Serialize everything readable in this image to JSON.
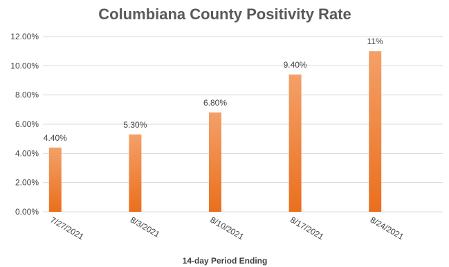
{
  "chart_data": {
    "type": "bar",
    "title": "Columbiana County Positivity Rate",
    "xlabel": "14-day Period Ending",
    "ylabel": "",
    "categories": [
      "7/27/2021",
      "8/3/2021",
      "8/10/2021",
      "8/17/2021",
      "8/24/2021"
    ],
    "values": [
      4.4,
      5.3,
      6.8,
      9.4,
      11.0
    ],
    "data_labels": [
      "4.40%",
      "5.30%",
      "6.80%",
      "9.40%",
      "11%"
    ],
    "y_ticks": [
      "0.00%",
      "2.00%",
      "4.00%",
      "6.00%",
      "8.00%",
      "10.00%",
      "12.00%"
    ],
    "ylim": [
      0,
      12
    ],
    "grid": true,
    "legend": "none",
    "colors": {
      "bar_top": "#f4a069",
      "bar_bottom": "#ea6f1d",
      "grid": "#d9d9d9",
      "text": "#404040",
      "title": "#595959"
    }
  }
}
